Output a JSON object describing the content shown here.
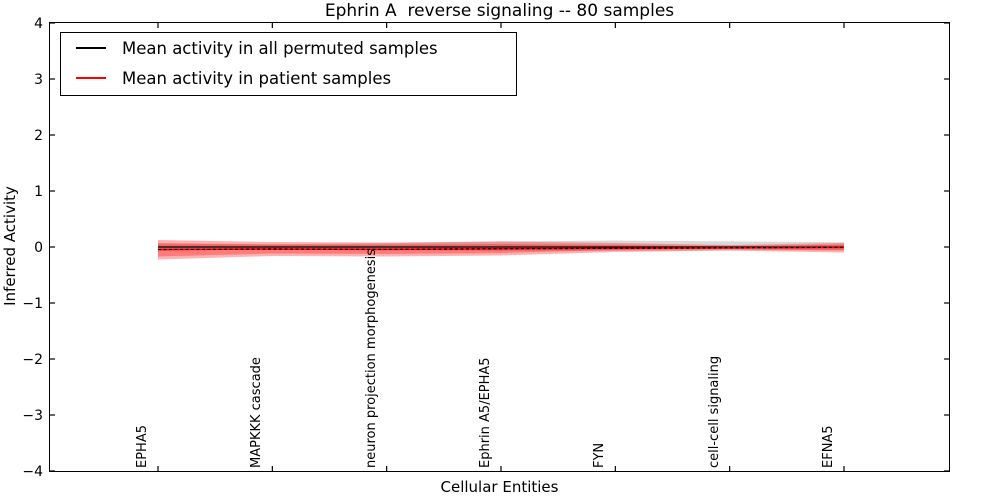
{
  "figure": {
    "title": "Ephrin A  reverse signaling -- 80 samples",
    "xlabel": "Cellular Entities",
    "ylabel": "Inferred Activity"
  },
  "legend": {
    "items": [
      {
        "label": "Mean activity in all permuted samples",
        "color": "#000000"
      },
      {
        "label": "Mean activity in patient samples",
        "color": "#ff0000"
      }
    ]
  },
  "chart_data": {
    "type": "line",
    "title": "Ephrin A  reverse signaling -- 80 samples",
    "xlabel": "Cellular Entities",
    "ylabel": "Inferred Activity",
    "ylim": [
      -4,
      4
    ],
    "yticks": [
      4,
      3,
      2,
      1,
      0,
      -1,
      -2,
      -3,
      -4
    ],
    "ytick_labels": [
      "4",
      "3",
      "2",
      "1",
      "0",
      "−1",
      "−2",
      "−3",
      "−4"
    ],
    "grid": false,
    "legend_position": "upper left",
    "categories": [
      "EPHA5",
      "MAPKKK cascade",
      "neuron projection morphogenesis",
      "Ephrin A5/EPHA5",
      "FYN",
      "cell-cell signaling",
      "EFNA5"
    ],
    "series": [
      {
        "id": "permuted-mean-line",
        "name": "Mean activity in all permuted samples",
        "color": "#000000",
        "width": 1.3,
        "values": [
          0,
          0,
          0,
          0,
          0,
          0,
          0
        ]
      },
      {
        "id": "patient-mean-line",
        "name": "Mean activity in patient samples",
        "color": "#ff0000",
        "width": 1.6,
        "values": [
          -0.045,
          -0.036,
          -0.041,
          -0.032,
          -0.023,
          -0.014,
          -0.005
        ],
        "black_dotted_overlay": true
      }
    ],
    "bands": [
      {
        "id": "permuted-std-band",
        "color": "#666666",
        "opacity": 0.25,
        "upper": [
          0.05,
          0.05,
          0.07,
          0.1,
          0.115,
          0.1,
          0.085
        ],
        "lower": [
          -0.05,
          -0.05,
          -0.06,
          -0.07,
          -0.07,
          -0.06,
          -0.055
        ]
      },
      {
        "id": "patient-std-outer-band",
        "color": "#ff0000",
        "opacity": 0.3,
        "upper": [
          0.125,
          0.089,
          0.08,
          0.098,
          0.071,
          0.036,
          0.071
        ],
        "lower": [
          -0.223,
          -0.161,
          -0.17,
          -0.152,
          -0.089,
          -0.063,
          -0.098
        ]
      },
      {
        "id": "patient-std-inner-band",
        "color": "#ff0000",
        "opacity": 0.3,
        "upper": [
          0.071,
          0.045,
          0.045,
          0.054,
          0.036,
          0.009,
          0.045
        ],
        "lower": [
          -0.17,
          -0.116,
          -0.125,
          -0.107,
          -0.054,
          -0.036,
          -0.063
        ]
      }
    ]
  }
}
